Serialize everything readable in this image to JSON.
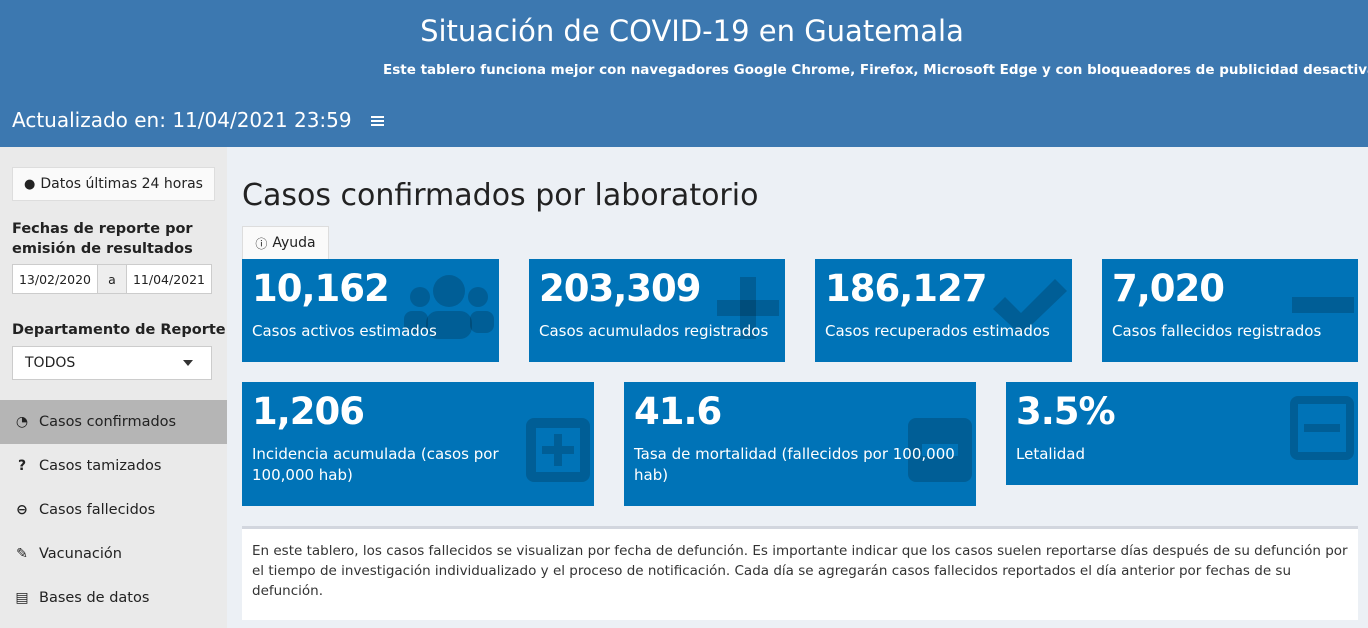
{
  "header": {
    "title": "Situación de COVID-19 en Guatemala",
    "subtitle": "Este tablero funciona mejor con navegadores Google Chrome, Firefox, Microsoft Edge y con bloqueadores de publicidad desactivados",
    "updated": "Actualizado en: 11/04/2021 23:59"
  },
  "sidebar": {
    "button": "Datos últimas 24 horas",
    "date_label": "Fechas de reporte por emisión de resultados",
    "date_from": "13/02/2020",
    "date_sep": "a",
    "date_to": "11/04/2021",
    "dept_label": "Departamento de Reporte",
    "dept_value": "TODOS",
    "menu": [
      "Casos confirmados",
      "Casos tamizados",
      "Casos fallecidos",
      "Vacunación",
      "Bases de datos"
    ]
  },
  "main": {
    "heading": "Casos confirmados por laboratorio",
    "help": "Ayuda",
    "boxes": [
      {
        "value": "10,162",
        "label": "Casos activos estimados"
      },
      {
        "value": "203,309",
        "label": "Casos acumulados registrados"
      },
      {
        "value": "186,127",
        "label": "Casos recuperados estimados"
      },
      {
        "value": "7,020",
        "label": "Casos fallecidos registrados"
      },
      {
        "value": "1,206",
        "label": "Incidencia acumulada (casos por 100,000 hab)"
      },
      {
        "value": "41.6",
        "label": "Tasa de mortalidad (fallecidos por 100,000 hab)"
      },
      {
        "value": "3.5%",
        "label": "Letalidad"
      }
    ],
    "note": "En este tablero, los casos fallecidos se visualizan por fecha de defunción. Es importante indicar que los casos suelen reportarse días después de su defunción por el tiempo de investigación individualizado y el proceso de notificación. Cada día se agregarán casos fallecidos reportados el día anterior por fechas de su defunción."
  }
}
